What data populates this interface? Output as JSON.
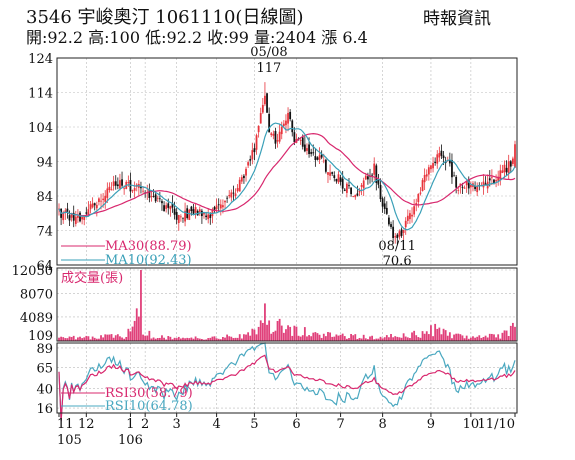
{
  "header": {
    "title": "3546 宇峻奧汀 1061110(日線圖)",
    "stats": "開:92.2 高:100 低:92.2 收:99 量:2404 漲 6.4",
    "source": "時報資訊"
  },
  "colors": {
    "up": "#e8343c",
    "down": "#111111",
    "ma30": "#d8286e",
    "ma10": "#3aa0b8",
    "volume": "#e0407a",
    "rsi30": "#d8286e",
    "rsi10": "#4aa8c0",
    "frame": "#222222"
  },
  "chart_data": {
    "type": "candlestick",
    "price_axis": {
      "ticks": [
        64,
        74,
        84,
        94,
        104,
        114,
        124
      ],
      "range": [
        64,
        124
      ]
    },
    "volume_axis": {
      "label": "成交量(張)",
      "ticks": [
        109,
        4089,
        8070,
        12050
      ],
      "range": [
        0,
        12050
      ]
    },
    "rsi_axis": {
      "ticks": [
        16,
        40,
        65,
        89
      ],
      "range": [
        10,
        95
      ]
    },
    "x_axis": {
      "month_labels": [
        {
          "label": "11",
          "day": 0
        },
        {
          "label": "12",
          "day": 13
        },
        {
          "label": "1",
          "day": 34
        },
        {
          "label": "2",
          "day": 41
        },
        {
          "label": "3",
          "day": 56
        },
        {
          "label": "4",
          "day": 75
        },
        {
          "label": "5",
          "day": 93
        },
        {
          "label": "6",
          "day": 113
        },
        {
          "label": "7",
          "day": 134
        },
        {
          "label": "8",
          "day": 154
        },
        {
          "label": "9",
          "day": 177
        },
        {
          "label": "10",
          "day": 196
        },
        {
          "label": "11/10",
          "day": 217
        }
      ],
      "year_labels": [
        {
          "label": "105",
          "day": 0
        },
        {
          "label": "106",
          "day": 34
        }
      ]
    },
    "legend": {
      "ma30": "MA30(88.79)",
      "ma10": "MA10(92.43)",
      "rsi30": "RSI30(58.79)",
      "rsi10": "RSI10(64.78)"
    },
    "annotations": {
      "high_date": "05/08",
      "high_value": "117",
      "high_day": 98,
      "low_date": "08/11",
      "low_value": "70.6",
      "low_day": 159
    },
    "close_anchors": [
      [
        0,
        79
      ],
      [
        8,
        77
      ],
      [
        13,
        80
      ],
      [
        20,
        84
      ],
      [
        27,
        88
      ],
      [
        33,
        87
      ],
      [
        38,
        86
      ],
      [
        45,
        83
      ],
      [
        52,
        80
      ],
      [
        58,
        78
      ],
      [
        63,
        80
      ],
      [
        69,
        78
      ],
      [
        75,
        80
      ],
      [
        80,
        82
      ],
      [
        85,
        86
      ],
      [
        89,
        92
      ],
      [
        93,
        98
      ],
      [
        96,
        108
      ],
      [
        98,
        114
      ],
      [
        100,
        104
      ],
      [
        103,
        100
      ],
      [
        106,
        103
      ],
      [
        109,
        108
      ],
      [
        112,
        101
      ],
      [
        116,
        99
      ],
      [
        121,
        96
      ],
      [
        126,
        93
      ],
      [
        131,
        90
      ],
      [
        136,
        87
      ],
      [
        140,
        84
      ],
      [
        145,
        88
      ],
      [
        150,
        92
      ],
      [
        154,
        81
      ],
      [
        157,
        76
      ],
      [
        159,
        72
      ],
      [
        163,
        74
      ],
      [
        168,
        80
      ],
      [
        173,
        88
      ],
      [
        177,
        92
      ],
      [
        181,
        98
      ],
      [
        185,
        94
      ],
      [
        190,
        86
      ],
      [
        194,
        88
      ],
      [
        198,
        86
      ],
      [
        203,
        88
      ],
      [
        208,
        89
      ],
      [
        212,
        92
      ],
      [
        215,
        93
      ],
      [
        217,
        99
      ]
    ],
    "volume_anchors": [
      [
        0,
        600
      ],
      [
        30,
        900
      ],
      [
        35,
        1800
      ],
      [
        39,
        12050
      ],
      [
        40,
        2400
      ],
      [
        45,
        800
      ],
      [
        60,
        500
      ],
      [
        75,
        600
      ],
      [
        88,
        1200
      ],
      [
        95,
        3500
      ],
      [
        98,
        5600
      ],
      [
        101,
        3200
      ],
      [
        106,
        2500
      ],
      [
        110,
        2200
      ],
      [
        120,
        1400
      ],
      [
        135,
        900
      ],
      [
        150,
        700
      ],
      [
        160,
        900
      ],
      [
        175,
        1500
      ],
      [
        180,
        2400
      ],
      [
        185,
        1100
      ],
      [
        195,
        700
      ],
      [
        210,
        1000
      ],
      [
        217,
        2404
      ]
    ]
  }
}
